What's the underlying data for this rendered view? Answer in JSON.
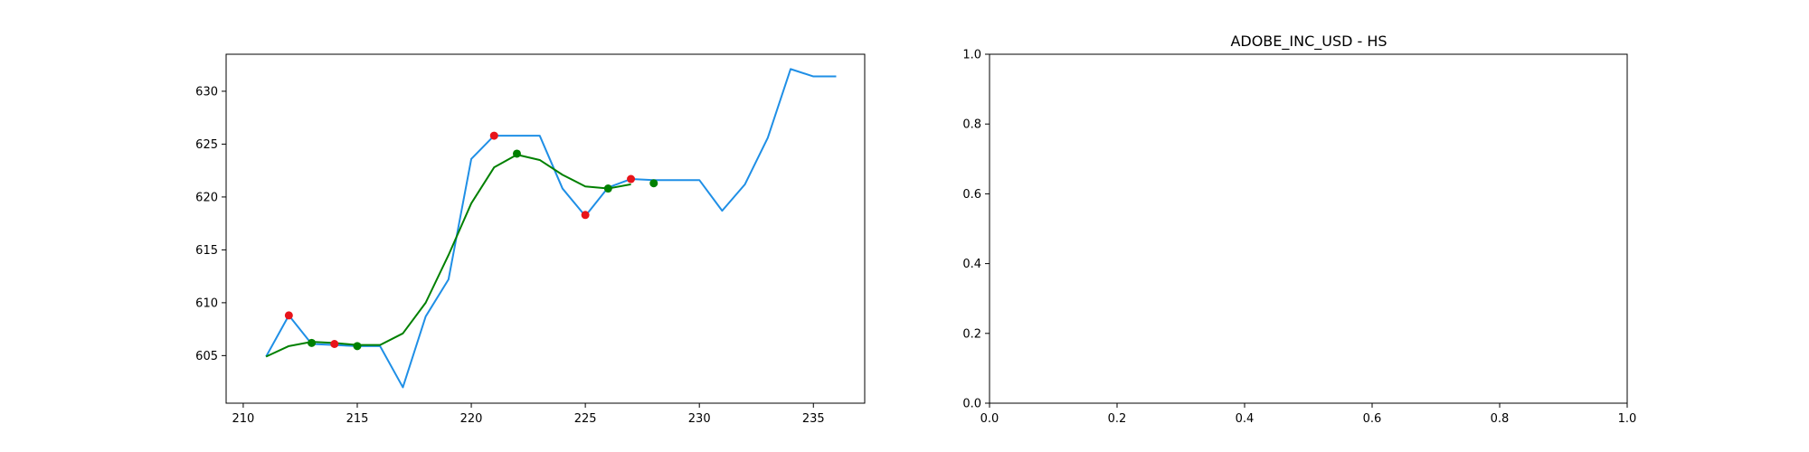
{
  "chart_data": [
    {
      "type": "line",
      "title": "",
      "xlabel": "",
      "ylabel": "",
      "xlim": [
        209.25,
        237.25
      ],
      "ylim": [
        600.5,
        633.5
      ],
      "xticks": [
        210,
        215,
        220,
        225,
        230,
        235
      ],
      "yticks": [
        605,
        610,
        615,
        620,
        625,
        630
      ],
      "grid": false,
      "colors": {
        "price": "#1f8fe6",
        "smooth": "#008000",
        "peak": "#e8141a",
        "trough": "#008000"
      },
      "series": [
        {
          "kind": "line",
          "x": [
            211,
            212,
            213,
            214,
            215,
            216,
            217,
            218,
            219,
            220,
            221,
            222,
            223,
            224,
            225,
            226,
            227,
            228,
            229,
            230,
            231,
            232,
            233,
            234,
            235,
            236
          ],
          "y": [
            604.9,
            608.8,
            606.1,
            606.0,
            605.9,
            605.9,
            602.0,
            608.7,
            612.2,
            623.6,
            625.8,
            625.8,
            625.8,
            620.8,
            618.2,
            620.9,
            621.7,
            621.6,
            621.6,
            621.6,
            618.7,
            621.2,
            625.6,
            632.1,
            631.4,
            631.4
          ]
        },
        {
          "kind": "line",
          "x": [
            211,
            212,
            213,
            214,
            215,
            216,
            217,
            218,
            219,
            220,
            221,
            222,
            223,
            224,
            225,
            226,
            227
          ],
          "y": [
            604.9,
            605.9,
            606.3,
            606.2,
            606.0,
            606.0,
            607.1,
            610.0,
            614.5,
            619.4,
            622.8,
            624.0,
            623.5,
            622.1,
            621.0,
            620.8,
            621.2
          ]
        },
        {
          "kind": "scatter",
          "x": [
            212,
            214,
            221,
            225,
            227
          ],
          "y": [
            608.8,
            606.1,
            625.8,
            618.3,
            621.7
          ]
        },
        {
          "kind": "scatter",
          "x": [
            213,
            215,
            222,
            226,
            228
          ],
          "y": [
            606.2,
            605.9,
            624.1,
            620.8,
            621.3
          ]
        }
      ]
    },
    {
      "type": "line",
      "title": "ADOBE_INC_USD - HS",
      "xlabel": "",
      "ylabel": "",
      "xlim": [
        0.0,
        1.0
      ],
      "ylim": [
        0.0,
        1.0
      ],
      "xticks": [
        0.0,
        0.2,
        0.4,
        0.6,
        0.8,
        1.0
      ],
      "yticks": [
        0.0,
        0.2,
        0.4,
        0.6,
        0.8,
        1.0
      ],
      "grid": false,
      "series": []
    }
  ]
}
